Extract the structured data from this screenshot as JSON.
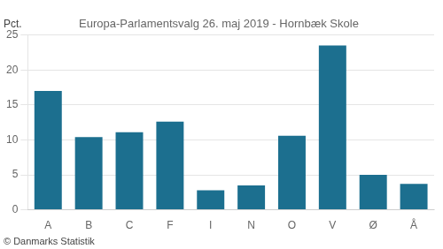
{
  "chart_data": {
    "type": "bar",
    "title": "Europa-Parlamentsvalg 26. maj 2019 - Hornbæk Skole",
    "categories": [
      "A",
      "B",
      "C",
      "F",
      "I",
      "N",
      "O",
      "V",
      "Ø",
      "Å"
    ],
    "values": [
      17.0,
      10.4,
      11.1,
      12.6,
      2.8,
      3.5,
      10.6,
      23.5,
      5.0,
      3.7
    ],
    "color": "#1c6f8f",
    "ylabel": "Pct.",
    "annotations": [
      "© Danmarks Statistik"
    ],
    "ylim": [
      0,
      25
    ],
    "yticks": [
      0,
      5,
      10,
      15,
      20,
      25
    ],
    "grid": true
  }
}
